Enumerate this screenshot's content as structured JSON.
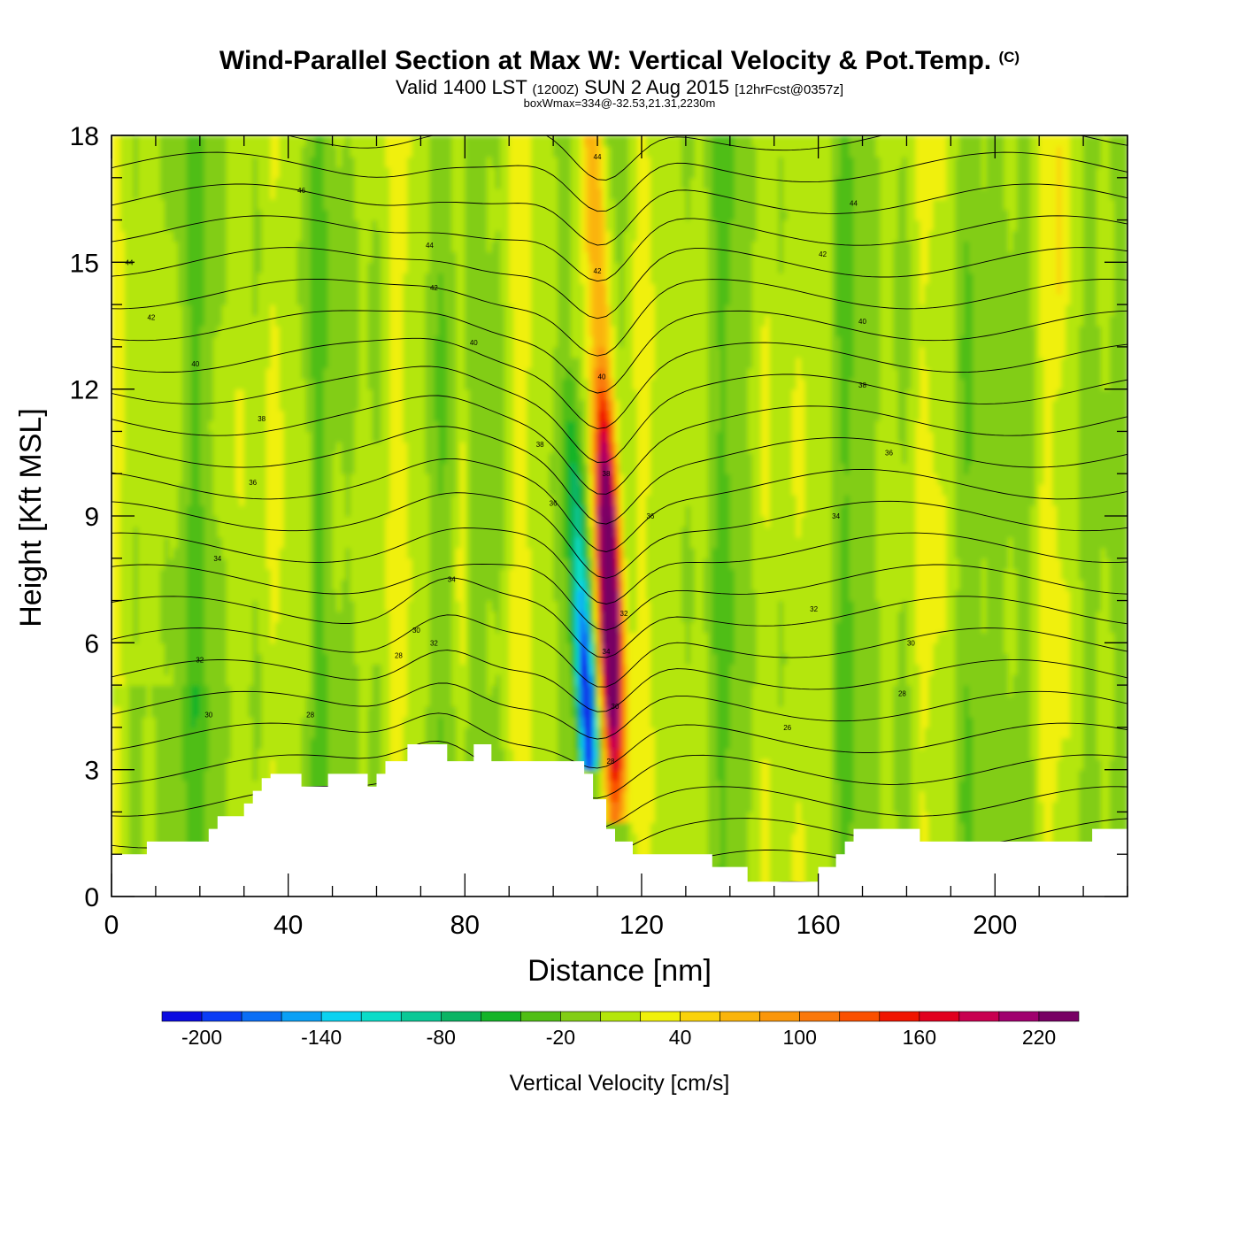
{
  "header": {
    "title": "Wind-Parallel Section at Max W: Vertical Velocity & Pot.Temp.",
    "copyright": "(C)",
    "valid_prefix": "Valid 1400 LST",
    "valid_utc": "(1200Z)",
    "valid_date": "SUN 2 Aug 2015",
    "forecast": "[12hrFcst@0357z]",
    "box_wmax": "boxWmax=334@-32.53,21.31,2230m"
  },
  "chart_data": {
    "type": "heatmap",
    "title": "Wind-Parallel Section at Max W: Vertical Velocity & Pot.Temp.",
    "xlabel": "Distance [nm]",
    "ylabel": "Height [Kft MSL]",
    "xlim": [
      0,
      230
    ],
    "ylim": [
      0,
      18
    ],
    "xticks": [
      0,
      40,
      80,
      120,
      160,
      200
    ],
    "yticks": [
      0,
      3,
      6,
      9,
      12,
      15,
      18
    ],
    "colorbar": {
      "title": "Vertical Velocity [cm/s]",
      "levels": [
        -220,
        -200,
        -180,
        -160,
        -140,
        -120,
        -100,
        -80,
        -60,
        -40,
        -20,
        0,
        20,
        40,
        60,
        80,
        100,
        120,
        140,
        160,
        180,
        200,
        220,
        240
      ],
      "colors": [
        "#0a0ae0",
        "#0a3cf5",
        "#0a6ef5",
        "#0aa0f5",
        "#0ad2f0",
        "#0adcc8",
        "#0ac896",
        "#0ab464",
        "#14b428",
        "#50be14",
        "#82cd14",
        "#b4e60a",
        "#f0f00a",
        "#fad20a",
        "#fab40a",
        "#fa960a",
        "#fa780a",
        "#fa5000",
        "#f01400",
        "#e1001e",
        "#c80050",
        "#a0006e",
        "#780064"
      ],
      "tick_labels": [
        "-200",
        "-140",
        "-80",
        "-20",
        "40",
        "100",
        "160",
        "220"
      ],
      "tick_values": [
        -200,
        -140,
        -80,
        -20,
        40,
        100,
        160,
        220
      ]
    },
    "max_w": {
      "value": 334,
      "x_nm": 113,
      "height_kft": 7.3
    },
    "updraft": {
      "base_x_nm": 114,
      "base_z_kft": 3.0,
      "top_x_nm": 109,
      "top_z_kft": 18
    },
    "downdraft": {
      "base_x_nm": 108,
      "base_z_kft": 3.5,
      "top_x_nm": 104,
      "top_z_kft": 12
    },
    "potential_temperature": {
      "contour_interval_k": 1,
      "labels": [
        {
          "v": "44",
          "x": 4,
          "z": 15.0
        },
        {
          "v": "46",
          "x": 43,
          "z": 16.7
        },
        {
          "v": "42",
          "x": 9,
          "z": 13.7
        },
        {
          "v": "40",
          "x": 19,
          "z": 12.6
        },
        {
          "v": "38",
          "x": 34,
          "z": 11.3
        },
        {
          "v": "36",
          "x": 32,
          "z": 9.8
        },
        {
          "v": "34",
          "x": 24,
          "z": 8.0
        },
        {
          "v": "32",
          "x": 20,
          "z": 5.6
        },
        {
          "v": "30",
          "x": 22,
          "z": 4.3
        },
        {
          "v": "44",
          "x": 72,
          "z": 15.4
        },
        {
          "v": "42",
          "x": 73,
          "z": 14.4
        },
        {
          "v": "40",
          "x": 82,
          "z": 13.1
        },
        {
          "v": "38",
          "x": 97,
          "z": 10.7
        },
        {
          "v": "36",
          "x": 100,
          "z": 9.3
        },
        {
          "v": "34",
          "x": 77,
          "z": 7.5
        },
        {
          "v": "32",
          "x": 73,
          "z": 6.0
        },
        {
          "v": "30",
          "x": 69,
          "z": 6.3
        },
        {
          "v": "28",
          "x": 65,
          "z": 5.7
        },
        {
          "v": "28",
          "x": 45,
          "z": 4.3
        },
        {
          "v": "44",
          "x": 110,
          "z": 17.5
        },
        {
          "v": "42",
          "x": 110,
          "z": 14.8
        },
        {
          "v": "40",
          "x": 111,
          "z": 12.3
        },
        {
          "v": "38",
          "x": 112,
          "z": 10.0
        },
        {
          "v": "32",
          "x": 116,
          "z": 6.7
        },
        {
          "v": "34",
          "x": 112,
          "z": 5.8
        },
        {
          "v": "30",
          "x": 114,
          "z": 4.5
        },
        {
          "v": "28",
          "x": 113,
          "z": 3.2
        },
        {
          "v": "36",
          "x": 122,
          "z": 9.0
        },
        {
          "v": "44",
          "x": 168,
          "z": 16.4
        },
        {
          "v": "42",
          "x": 161,
          "z": 15.2
        },
        {
          "v": "40",
          "x": 170,
          "z": 13.6
        },
        {
          "v": "38",
          "x": 170,
          "z": 12.1
        },
        {
          "v": "36",
          "x": 176,
          "z": 10.5
        },
        {
          "v": "34",
          "x": 164,
          "z": 9.0
        },
        {
          "v": "32",
          "x": 159,
          "z": 6.8
        },
        {
          "v": "30",
          "x": 181,
          "z": 6.0
        },
        {
          "v": "28",
          "x": 179,
          "z": 4.8
        },
        {
          "v": "26",
          "x": 153,
          "z": 4.0
        }
      ]
    },
    "terrain": [
      [
        0,
        1.0
      ],
      [
        8,
        1.0
      ],
      [
        8,
        1.3
      ],
      [
        22,
        1.3
      ],
      [
        22,
        1.6
      ],
      [
        24,
        1.6
      ],
      [
        24,
        1.9
      ],
      [
        30,
        1.9
      ],
      [
        30,
        2.2
      ],
      [
        32,
        2.2
      ],
      [
        32,
        2.5
      ],
      [
        34,
        2.5
      ],
      [
        34,
        2.8
      ],
      [
        36,
        2.8
      ],
      [
        36,
        2.9
      ],
      [
        43,
        2.9
      ],
      [
        43,
        2.6
      ],
      [
        49,
        2.6
      ],
      [
        49,
        2.9
      ],
      [
        58,
        2.9
      ],
      [
        58,
        2.6
      ],
      [
        60,
        2.6
      ],
      [
        60,
        2.9
      ],
      [
        62,
        2.9
      ],
      [
        62,
        3.2
      ],
      [
        67,
        3.2
      ],
      [
        67,
        3.6
      ],
      [
        76,
        3.6
      ],
      [
        76,
        3.2
      ],
      [
        82,
        3.2
      ],
      [
        82,
        3.6
      ],
      [
        86,
        3.6
      ],
      [
        86,
        3.2
      ],
      [
        107,
        3.2
      ],
      [
        107,
        2.9
      ],
      [
        109,
        2.9
      ],
      [
        109,
        2.3
      ],
      [
        112,
        2.3
      ],
      [
        112,
        1.6
      ],
      [
        114,
        1.6
      ],
      [
        114,
        1.3
      ],
      [
        118,
        1.3
      ],
      [
        118,
        1.0
      ],
      [
        136,
        1.0
      ],
      [
        136,
        0.7
      ],
      [
        144,
        0.7
      ],
      [
        144,
        0.35
      ],
      [
        160,
        0.35
      ],
      [
        160,
        0.7
      ],
      [
        164,
        0.7
      ],
      [
        164,
        1.0
      ],
      [
        166,
        1.0
      ],
      [
        166,
        1.3
      ],
      [
        168,
        1.3
      ],
      [
        168,
        1.6
      ],
      [
        183,
        1.6
      ],
      [
        183,
        1.3
      ],
      [
        222,
        1.3
      ],
      [
        222,
        1.6
      ],
      [
        230,
        1.6
      ],
      [
        230,
        0
      ]
    ]
  }
}
